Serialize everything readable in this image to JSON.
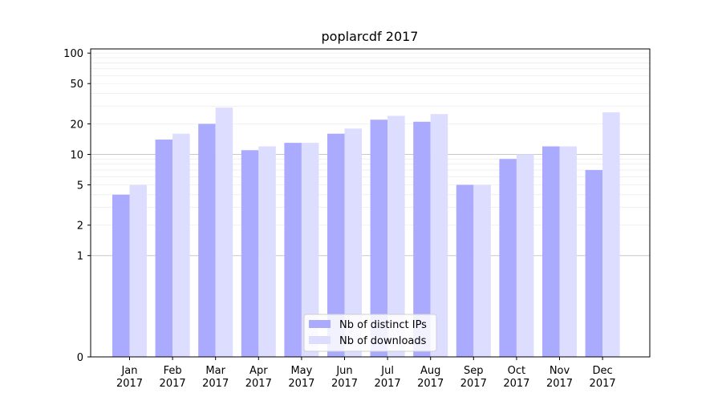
{
  "chart_data": {
    "type": "bar",
    "title": "poplarcdf 2017",
    "xlabel": "",
    "ylabel": "",
    "yscale": "symlog",
    "ylim": [
      0,
      110
    ],
    "yticks": [
      0,
      1,
      2,
      5,
      10,
      20,
      50,
      100
    ],
    "ytick_labels": [
      "0",
      "1",
      "2",
      "5",
      "10",
      "20",
      "50",
      "100"
    ],
    "categories": [
      "Jan\n2017",
      "Feb\n2017",
      "Mar\n2017",
      "Apr\n2017",
      "May\n2017",
      "Jun\n2017",
      "Jul\n2017",
      "Aug\n2017",
      "Sep\n2017",
      "Oct\n2017",
      "Nov\n2017",
      "Dec\n2017"
    ],
    "series": [
      {
        "name": "Nb of distinct IPs",
        "color": "#aaaaff",
        "values": [
          4,
          14,
          20,
          11,
          13,
          16,
          22,
          21,
          5,
          9,
          12,
          7
        ]
      },
      {
        "name": "Nb of downloads",
        "color": "#ddddff",
        "values": [
          5,
          16,
          29,
          12,
          13,
          18,
          24,
          25,
          5,
          10,
          12,
          26
        ]
      }
    ],
    "grid": true,
    "legend_position": "lower center"
  }
}
